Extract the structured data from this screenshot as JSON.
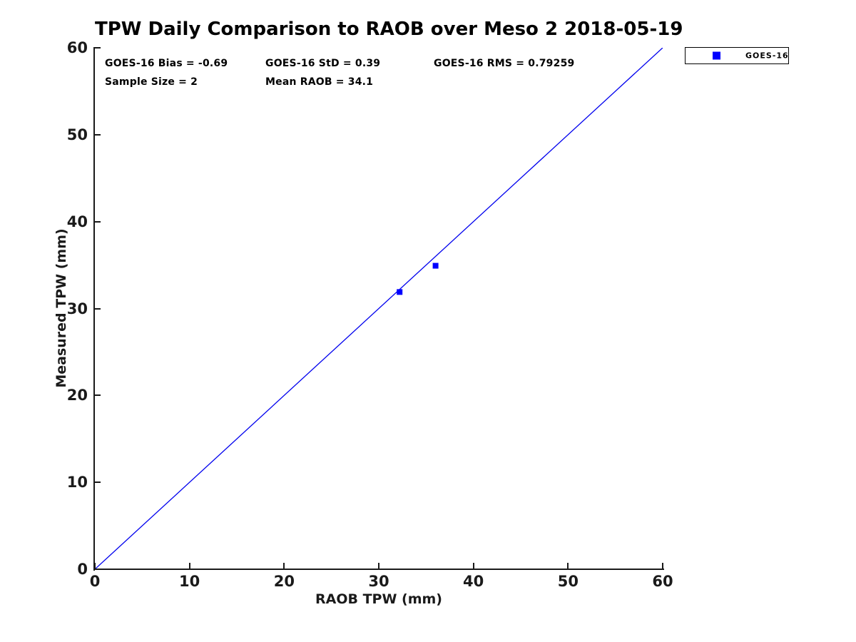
{
  "title": "TPW Daily Comparison to RAOB over Meso 2 2018-05-19",
  "legend": {
    "label": "GOES-16",
    "marker_shape": "square",
    "marker_color": "#0000ff"
  },
  "colors": {
    "line": "#0000ee",
    "marker": "#0000ff",
    "axis": "#1a1a1a",
    "text": "#000000",
    "background": "#ffffff"
  },
  "chart_data": {
    "type": "scatter",
    "title": "TPW Daily Comparison to RAOB over Meso 2 2018-05-19",
    "xlabel": "RAOB TPW (mm)",
    "ylabel": "Measured TPW (mm)",
    "xlim": [
      0,
      60
    ],
    "ylim": [
      0,
      60
    ],
    "xticks": [
      0,
      10,
      20,
      30,
      40,
      50,
      60
    ],
    "yticks": [
      0,
      10,
      20,
      30,
      40,
      50,
      60
    ],
    "grid": false,
    "legend_position": "outside-top-right",
    "series": [
      {
        "name": "GOES-16",
        "marker": "square",
        "color": "#0000ff",
        "points": [
          [
            32.2,
            31.9
          ],
          [
            36.0,
            34.92
          ]
        ]
      }
    ],
    "reference_line": {
      "x": [
        0,
        60
      ],
      "y": [
        0,
        60
      ],
      "color": "#0000ee",
      "style": "solid",
      "width": 1.3
    },
    "annotations": {
      "bias": "GOES-16 Bias = -0.69",
      "std": "GOES-16 StD = 0.39",
      "rms": "GOES-16 RMS = 0.79259",
      "sample_size": "Sample Size = 2",
      "mean_raob": "Mean RAOB = 34.1"
    }
  }
}
